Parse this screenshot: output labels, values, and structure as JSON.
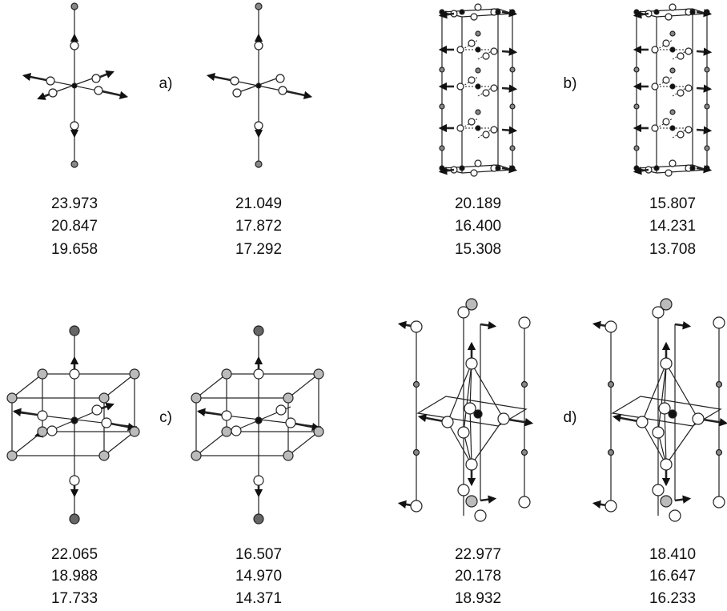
{
  "panels": [
    {
      "label": "a)",
      "columns": [
        {
          "values": [
            "23.973",
            "20.847",
            "19.658"
          ]
        },
        {
          "values": [
            "21.049",
            "17.872",
            "17.292"
          ]
        }
      ]
    },
    {
      "label": "b)",
      "columns": [
        {
          "values": [
            "20.189",
            "16.400",
            "15.308"
          ]
        },
        {
          "values": [
            "15.807",
            "14.231",
            "13.708"
          ]
        }
      ]
    },
    {
      "label": "c)",
      "columns": [
        {
          "values": [
            "22.065",
            "18.988",
            "17.733"
          ]
        },
        {
          "values": [
            "16.507",
            "14.970",
            "14.371"
          ]
        }
      ]
    },
    {
      "label": "d)",
      "columns": [
        {
          "values": [
            "22.977",
            "20.178",
            "18.932"
          ]
        },
        {
          "values": [
            "18.410",
            "16.647",
            "16.233"
          ]
        }
      ]
    }
  ]
}
